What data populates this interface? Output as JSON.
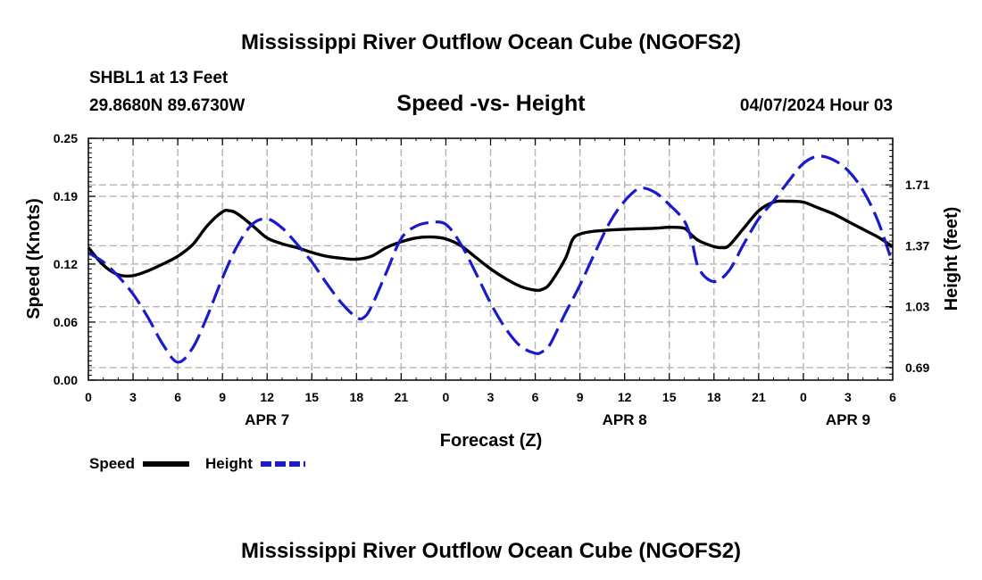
{
  "chart_data": {
    "type": "line",
    "title": "Mississippi River Outflow Ocean Cube (NGOFS2)",
    "station": "SHBL1 at 13 Feet",
    "location": "29.8680N  89.6730W",
    "subtitle": "Speed -vs- Height",
    "datetime": "04/07/2024 Hour 03",
    "footer_title": "Mississippi River Outflow Ocean Cube (NGOFS2)",
    "xlabel": "Forecast (Z)",
    "ylabel_left": "Speed (Knots)",
    "ylabel_right": "Height (feet)",
    "x_hours_range": [
      0,
      54
    ],
    "x_tick_labels": [
      "0",
      "3",
      "6",
      "9",
      "12",
      "15",
      "18",
      "21",
      "0",
      "3",
      "6",
      "9",
      "12",
      "15",
      "18",
      "21",
      "0",
      "3",
      "6"
    ],
    "date_labels": [
      {
        "label": "APR 7",
        "hour": 12
      },
      {
        "label": "APR 8",
        "hour": 36
      },
      {
        "label": "APR 9",
        "hour": 51
      }
    ],
    "y_left": {
      "range": [
        0,
        0.25
      ],
      "ticks": [
        "0.00",
        "0.06",
        "0.12",
        "0.19",
        "0.25"
      ]
    },
    "y_right": {
      "range": [
        0.62,
        1.97
      ],
      "ticks": [
        "0.69",
        "1.03",
        "1.37",
        "1.71"
      ]
    },
    "series": [
      {
        "name": "Speed",
        "axis": "left",
        "color": "#000000",
        "style": "solid",
        "points": [
          [
            0,
            0.137
          ],
          [
            1,
            0.119
          ],
          [
            2,
            0.109
          ],
          [
            3,
            0.108
          ],
          [
            4,
            0.113
          ],
          [
            5,
            0.12
          ],
          [
            6,
            0.128
          ],
          [
            7,
            0.14
          ],
          [
            8,
            0.16
          ],
          [
            9,
            0.174
          ],
          [
            9.5,
            0.175
          ],
          [
            10,
            0.172
          ],
          [
            11,
            0.16
          ],
          [
            12,
            0.147
          ],
          [
            13,
            0.141
          ],
          [
            14,
            0.137
          ],
          [
            15,
            0.132
          ],
          [
            16,
            0.128
          ],
          [
            17,
            0.126
          ],
          [
            18,
            0.125
          ],
          [
            19,
            0.128
          ],
          [
            20,
            0.137
          ],
          [
            21,
            0.143
          ],
          [
            22,
            0.147
          ],
          [
            23,
            0.148
          ],
          [
            24,
            0.146
          ],
          [
            25,
            0.139
          ],
          [
            26,
            0.127
          ],
          [
            27,
            0.115
          ],
          [
            28,
            0.105
          ],
          [
            29,
            0.097
          ],
          [
            30,
            0.093
          ],
          [
            30.5,
            0.094
          ],
          [
            31,
            0.1
          ],
          [
            32,
            0.125
          ],
          [
            32.5,
            0.145
          ],
          [
            33,
            0.151
          ],
          [
            34,
            0.154
          ],
          [
            36,
            0.156
          ],
          [
            38,
            0.157
          ],
          [
            39,
            0.158
          ],
          [
            40,
            0.157
          ],
          [
            40.5,
            0.15
          ],
          [
            41,
            0.144
          ],
          [
            42,
            0.138
          ],
          [
            42.5,
            0.137
          ],
          [
            43,
            0.139
          ],
          [
            44,
            0.157
          ],
          [
            45,
            0.175
          ],
          [
            46,
            0.184
          ],
          [
            47,
            0.185
          ],
          [
            48,
            0.184
          ],
          [
            49,
            0.178
          ],
          [
            50,
            0.172
          ],
          [
            51,
            0.164
          ],
          [
            52,
            0.156
          ],
          [
            53,
            0.148
          ],
          [
            54,
            0.138
          ]
        ]
      },
      {
        "name": "Height",
        "axis": "right",
        "color": "#1a1acc",
        "style": "dashed",
        "points": [
          [
            0,
            1.33
          ],
          [
            1,
            1.28
          ],
          [
            2,
            1.2
          ],
          [
            3,
            1.1
          ],
          [
            4,
            0.97
          ],
          [
            5,
            0.82
          ],
          [
            6,
            0.72
          ],
          [
            7,
            0.8
          ],
          [
            8,
            0.98
          ],
          [
            9,
            1.19
          ],
          [
            10,
            1.37
          ],
          [
            11,
            1.49
          ],
          [
            12,
            1.52
          ],
          [
            13,
            1.47
          ],
          [
            14,
            1.38
          ],
          [
            15,
            1.28
          ],
          [
            16,
            1.16
          ],
          [
            17,
            1.05
          ],
          [
            18,
            0.97
          ],
          [
            18.5,
            0.97
          ],
          [
            19,
            1.03
          ],
          [
            20,
            1.22
          ],
          [
            21,
            1.41
          ],
          [
            22,
            1.48
          ],
          [
            23,
            1.5
          ],
          [
            24,
            1.49
          ],
          [
            25,
            1.38
          ],
          [
            26,
            1.22
          ],
          [
            27,
            1.05
          ],
          [
            28,
            0.91
          ],
          [
            29,
            0.81
          ],
          [
            30,
            0.77
          ],
          [
            30.5,
            0.78
          ],
          [
            31,
            0.82
          ],
          [
            32,
            0.99
          ],
          [
            33,
            1.15
          ],
          [
            34,
            1.33
          ],
          [
            35,
            1.5
          ],
          [
            36,
            1.62
          ],
          [
            37,
            1.69
          ],
          [
            38,
            1.67
          ],
          [
            39,
            1.6
          ],
          [
            40,
            1.51
          ],
          [
            40.5,
            1.4
          ],
          [
            41,
            1.24
          ],
          [
            42,
            1.17
          ],
          [
            43,
            1.23
          ],
          [
            44,
            1.38
          ],
          [
            45,
            1.52
          ],
          [
            46,
            1.62
          ],
          [
            47,
            1.73
          ],
          [
            48,
            1.83
          ],
          [
            49,
            1.87
          ],
          [
            50,
            1.85
          ],
          [
            51,
            1.79
          ],
          [
            52,
            1.68
          ],
          [
            53,
            1.51
          ],
          [
            54,
            1.27
          ]
        ]
      }
    ],
    "legend": [
      {
        "label": "Speed",
        "color": "#000000",
        "style": "solid"
      },
      {
        "label": "Height",
        "color": "#1a1acc",
        "style": "dashed"
      }
    ]
  }
}
